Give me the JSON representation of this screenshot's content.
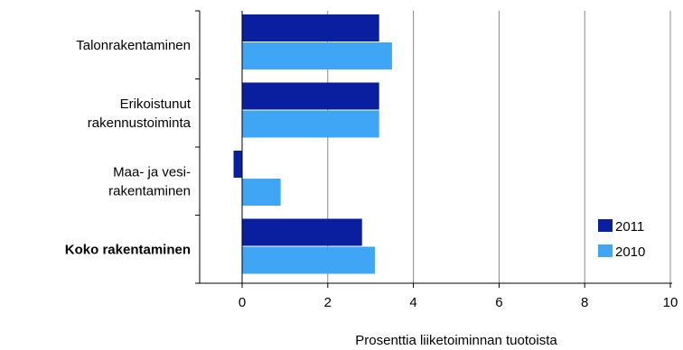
{
  "chart_data": {
    "type": "bar",
    "orientation": "horizontal",
    "categories": [
      [
        "Talonrakentaminen"
      ],
      [
        "Erikoistunut",
        "rakennustoiminta"
      ],
      [
        "Maa- ja vesi-",
        "rakentaminen"
      ],
      [
        "Koko rakentaminen"
      ]
    ],
    "category_bold": [
      false,
      false,
      false,
      true
    ],
    "series": [
      {
        "name": "2011",
        "color": "#0a1fa0",
        "values": [
          3.2,
          3.2,
          -0.2,
          2.8
        ]
      },
      {
        "name": "2010",
        "color": "#3ea6f4",
        "values": [
          3.5,
          3.2,
          0.9,
          3.1
        ]
      }
    ],
    "xlim": [
      -1,
      10
    ],
    "xticks": [
      0,
      2,
      4,
      6,
      8,
      10
    ],
    "xlabel": "Prosenttia liiketoiminnan tuotoista",
    "ylabel": "",
    "title": "",
    "grid": "vertical",
    "legend": "bottom-right"
  }
}
